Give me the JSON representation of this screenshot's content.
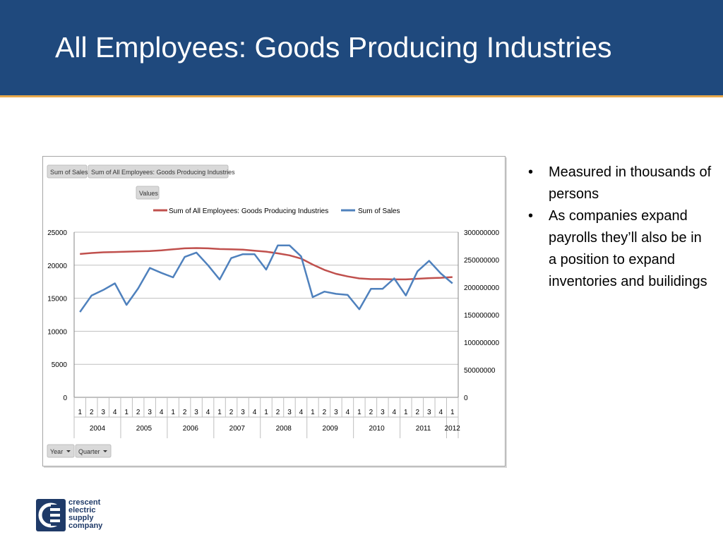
{
  "slide": {
    "title": "All Employees: Goods Producing Industries",
    "bullets": [
      "Measured in thousands of persons",
      "As companies expand payrolls they’ll also be in a position to expand inventories and builidings"
    ]
  },
  "logo": {
    "lines": [
      "crescent",
      "electric",
      "supply",
      "company"
    ],
    "mark": "CE"
  },
  "pivot": {
    "field_buttons": [
      "Sum of Sales",
      "Sum of All Employees: Goods Producing Industries"
    ],
    "values_button": "Values",
    "axis_buttons": [
      "Year",
      "Quarter"
    ],
    "dropdown_icon": "dropdown-arrow-icon"
  },
  "colors": {
    "header": "#1f497d",
    "header_line": "#e8a84a",
    "employees": "#c0504d",
    "sales": "#4f81bd"
  },
  "chart_data": {
    "type": "line",
    "legend_position": "top",
    "grid": true,
    "years": [
      "2004",
      "2005",
      "2006",
      "2007",
      "2008",
      "2009",
      "2010",
      "2011",
      "2012"
    ],
    "categories": [
      "1",
      "2",
      "3",
      "4",
      "1",
      "2",
      "3",
      "4",
      "1",
      "2",
      "3",
      "4",
      "1",
      "2",
      "3",
      "4",
      "1",
      "2",
      "3",
      "4",
      "1",
      "2",
      "3",
      "4",
      "1",
      "2",
      "3",
      "4",
      "1",
      "2",
      "3",
      "4",
      "1"
    ],
    "y_left": {
      "ylim": [
        0,
        25000
      ],
      "ticks": [
        "0",
        "5000",
        "10000",
        "15000",
        "20000",
        "25000"
      ]
    },
    "y_right": {
      "ylim": [
        0,
        300000000
      ],
      "ticks": [
        "0",
        "50000000",
        "100000000",
        "150000000",
        "200000000",
        "250000000",
        "300000000"
      ]
    },
    "series": [
      {
        "name": "Sum of All Employees: Goods Producing Industries",
        "axis": "left",
        "values": [
          21700,
          21850,
          21950,
          22000,
          22050,
          22100,
          22150,
          22250,
          22400,
          22550,
          22600,
          22550,
          22450,
          22400,
          22350,
          22200,
          22050,
          21800,
          21500,
          21000,
          20100,
          19300,
          18700,
          18300,
          18000,
          17900,
          17900,
          17850,
          17850,
          17950,
          18050,
          18100,
          18200
        ]
      },
      {
        "name": "Sum of Sales",
        "axis": "right",
        "values": [
          155000000,
          185000000,
          195000000,
          207000000,
          168000000,
          198000000,
          235000000,
          226000000,
          218000000,
          255000000,
          263000000,
          240000000,
          214000000,
          253000000,
          260000000,
          260000000,
          232000000,
          276000000,
          276000000,
          256000000,
          182000000,
          192000000,
          188000000,
          186000000,
          160000000,
          197000000,
          197000000,
          216000000,
          185000000,
          229000000,
          248000000,
          225000000,
          207000000
        ]
      }
    ]
  }
}
